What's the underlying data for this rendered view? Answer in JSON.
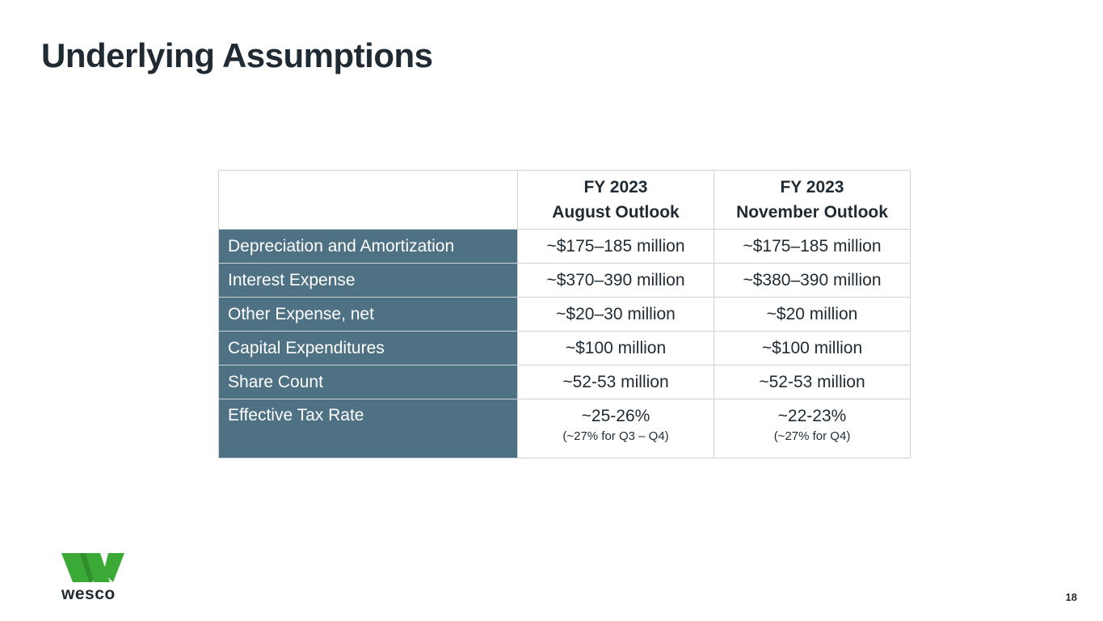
{
  "slide": {
    "title": "Underlying Assumptions",
    "page_number": "18"
  },
  "table": {
    "headers": {
      "august": [
        "FY 2023",
        "August Outlook"
      ],
      "november": [
        "FY 2023",
        "November Outlook"
      ]
    },
    "rows": [
      {
        "label": "Depreciation and Amortization",
        "august": "~$175–185 million",
        "november": "~$175–185 million"
      },
      {
        "label": "Interest Expense",
        "august": "~$370–390 million",
        "november": "~$380–390 million"
      },
      {
        "label": "Other Expense, net",
        "august": "~$20–30 million",
        "november": "~$20 million"
      },
      {
        "label": "Capital Expenditures",
        "august": "~$100 million",
        "november": "~$100 million"
      },
      {
        "label": "Share Count",
        "august": "~52-53 million",
        "november": "~52-53 million"
      },
      {
        "label": "Effective Tax Rate",
        "august": "~25-26%",
        "august_note": "(~27% for Q3 – Q4)",
        "november": "~22-23%",
        "november_note": "(~27% for Q4)"
      }
    ]
  },
  "logo": {
    "text": "wesco",
    "color": "#3aa935"
  },
  "colors": {
    "label_fill": "#4e7184",
    "title_text": "#1f2a33",
    "border": "#cfd4d8"
  }
}
